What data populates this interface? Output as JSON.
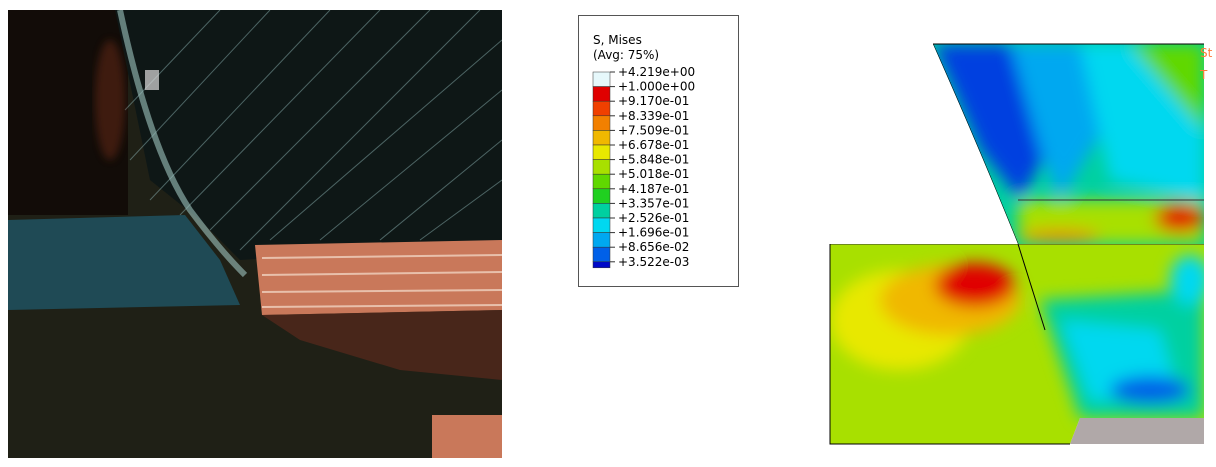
{
  "legend": {
    "title": "S, Mises",
    "subtitle": "(Avg: 75%)",
    "labels": [
      "+4.219e+00",
      "+1.000e+00",
      "+9.170e-01",
      "+8.339e-01",
      "+7.509e-01",
      "+6.678e-01",
      "+5.848e-01",
      "+5.018e-01",
      "+4.187e-01",
      "+3.357e-01",
      "+2.526e-01",
      "+1.696e-01",
      "+8.656e-02",
      "+3.522e-03"
    ],
    "colors": [
      "#e6f8fb",
      "#e00000",
      "#f04000",
      "#f28000",
      "#f0b800",
      "#e8e800",
      "#a8e000",
      "#60d800",
      "#20d020",
      "#00d0a0",
      "#00d8f0",
      "#00a8f0",
      "#0060e8",
      "#0008c8",
      "#1a0000"
    ]
  },
  "overlay": {
    "line1": "St",
    "line2": "T"
  }
}
